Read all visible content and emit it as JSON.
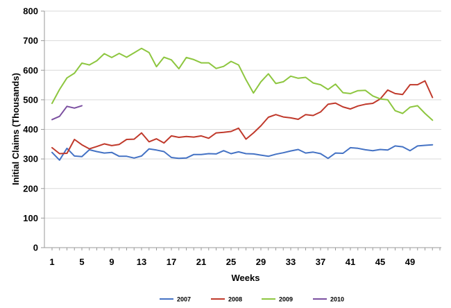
{
  "chart_data": {
    "type": "line",
    "title": "",
    "xlabel": "Weeks",
    "ylabel": "Initial Claims (Thousands)",
    "ylim": [
      0,
      800
    ],
    "yticks": [
      0,
      100,
      200,
      300,
      400,
      500,
      600,
      700,
      800
    ],
    "xlim": [
      1,
      52
    ],
    "xticks": [
      1,
      5,
      9,
      13,
      17,
      21,
      25,
      29,
      33,
      37,
      41,
      45,
      49
    ],
    "grid": "horizontal",
    "legend_position": "bottom",
    "series": [
      {
        "name": "2007",
        "color": "#4472c4",
        "x": [
          1,
          2,
          3,
          4,
          5,
          6,
          7,
          8,
          9,
          10,
          11,
          12,
          13,
          14,
          15,
          16,
          17,
          18,
          19,
          20,
          21,
          22,
          23,
          24,
          25,
          26,
          27,
          28,
          29,
          30,
          31,
          32,
          33,
          34,
          35,
          36,
          37,
          38,
          39,
          40,
          41,
          42,
          43,
          44,
          45,
          46,
          47,
          48,
          49,
          50,
          51,
          52
        ],
        "values": [
          322,
          296,
          336,
          310,
          308,
          331,
          325,
          320,
          322,
          309,
          309,
          303,
          310,
          334,
          330,
          325,
          305,
          302,
          303,
          315,
          315,
          318,
          317,
          328,
          318,
          324,
          318,
          317,
          313,
          309,
          316,
          321,
          327,
          332,
          320,
          323,
          318,
          302,
          320,
          319,
          338,
          336,
          331,
          328,
          332,
          330,
          344,
          341,
          328,
          344,
          346,
          348
        ]
      },
      {
        "name": "2008",
        "color": "#c0392b",
        "x": [
          1,
          2,
          3,
          4,
          5,
          6,
          7,
          8,
          9,
          10,
          11,
          12,
          13,
          14,
          15,
          16,
          17,
          18,
          19,
          20,
          21,
          22,
          23,
          24,
          25,
          26,
          27,
          28,
          29,
          30,
          31,
          32,
          33,
          34,
          35,
          36,
          37,
          38,
          39,
          40,
          41,
          42,
          43,
          44,
          45,
          46,
          47,
          48,
          49,
          50,
          51,
          52
        ],
        "values": [
          338,
          318,
          319,
          366,
          348,
          334,
          342,
          351,
          345,
          349,
          366,
          367,
          388,
          358,
          368,
          354,
          378,
          373,
          376,
          374,
          378,
          370,
          388,
          390,
          393,
          404,
          367,
          388,
          412,
          441,
          450,
          442,
          439,
          434,
          450,
          447,
          459,
          485,
          489,
          476,
          469,
          479,
          485,
          488,
          503,
          533,
          521,
          518,
          551,
          551,
          564,
          508
        ]
      },
      {
        "name": "2009",
        "color": "#8dc63f",
        "x": [
          1,
          2,
          3,
          4,
          5,
          6,
          7,
          8,
          9,
          10,
          11,
          12,
          13,
          14,
          15,
          16,
          17,
          18,
          19,
          20,
          21,
          22,
          23,
          24,
          25,
          26,
          27,
          28,
          29,
          30,
          31,
          32,
          33,
          34,
          35,
          36,
          37,
          38,
          39,
          40,
          41,
          42,
          43,
          44,
          45,
          46,
          47,
          48,
          49,
          50,
          51,
          52
        ],
        "values": [
          488,
          535,
          574,
          590,
          624,
          618,
          632,
          656,
          643,
          657,
          644,
          659,
          674,
          660,
          612,
          644,
          635,
          605,
          643,
          636,
          625,
          625,
          606,
          613,
          630,
          618,
          568,
          523,
          561,
          588,
          555,
          561,
          580,
          573,
          576,
          557,
          551,
          535,
          553,
          524,
          521,
          531,
          532,
          513,
          503,
          500,
          463,
          454,
          475,
          480,
          454,
          431
        ]
      },
      {
        "name": "2010",
        "color": "#7b4fa0",
        "x": [
          1,
          2,
          3,
          4,
          5
        ],
        "values": [
          433,
          444,
          478,
          472,
          480
        ]
      }
    ]
  }
}
